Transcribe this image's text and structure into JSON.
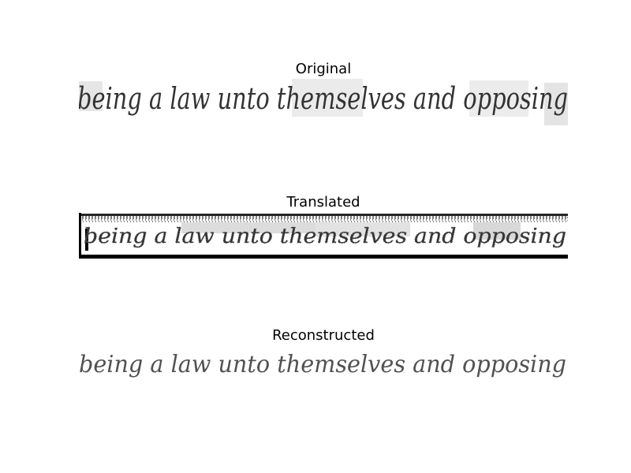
{
  "panels": [
    {
      "title": "Original"
    },
    {
      "title": "Translated"
    },
    {
      "title": "Reconstructed"
    }
  ],
  "handwriting_line": "being a law unto themselves and opposing",
  "colors": {
    "background": "#ffffff",
    "ink": "#333333",
    "gray_patch": "#e4e4e4",
    "artifact_black": "#000000"
  }
}
